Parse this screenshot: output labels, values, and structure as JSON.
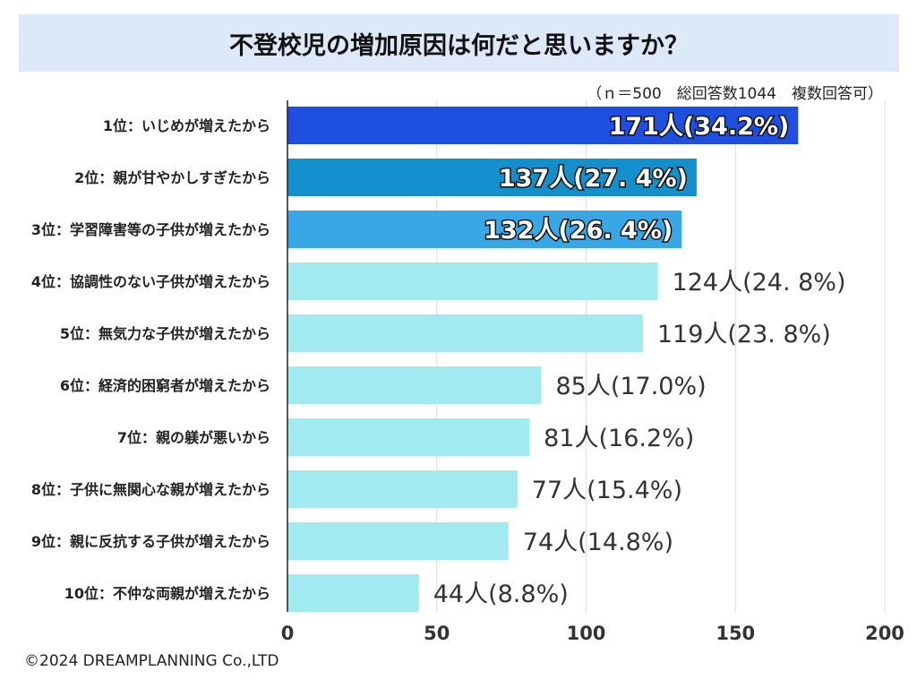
{
  "header": {
    "title": "不登校児の増加原因は何だと思いますか？",
    "note": "（ｎ＝500　総回答数1044　複数回答可）"
  },
  "chart_data": {
    "type": "bar",
    "orientation": "horizontal",
    "title": "不登校児の増加原因は何だと思いますか？",
    "xlabel": "",
    "ylabel": "",
    "xlim": [
      0,
      200
    ],
    "xticks": [
      0,
      50,
      100,
      150,
      200
    ],
    "grid": true,
    "categories": [
      "1位：いじめが増えたから",
      "2位：親が甘やかしすぎたから",
      "3位：学習障害等の子供が増えたから",
      "4位：協調性のない子供が増えたから",
      "5位：無気力な子供が増えたから",
      "6位：経済的困窮者が増えたから",
      "7位：親の躾が悪いから",
      "8位：子供に無関心な親が増えたから",
      "9位：親に反抗する子供が増えたから",
      "10位：不仲な両親が増えたから"
    ],
    "values": [
      171,
      137,
      132,
      124,
      119,
      85,
      81,
      77,
      74,
      44
    ],
    "labels": [
      "171人(34.2%)",
      "137人(27. 4%)",
      "132人(26. 4%)",
      "124人(24. 8%)",
      "119人(23. 8%)",
      "85人(17.0%)",
      "81人(16.2%)",
      "77人(15.4%)",
      "74人(14.8%)",
      "44人(8.8%)"
    ],
    "colors": [
      "#1f4fe0",
      "#138fcc",
      "#39a7e6",
      "#a0eaf0",
      "#a0eaf0",
      "#a0eaf0",
      "#a0eaf0",
      "#a0eaf0",
      "#a0eaf0",
      "#a0eaf0"
    ],
    "label_inside": [
      true,
      true,
      true,
      false,
      false,
      false,
      false,
      false,
      false,
      false
    ],
    "gridline_color": "#dcdcdc",
    "axis_color": "#222222"
  },
  "footer": {
    "copyright": "©2024 DREAMPLANNING Co.,LTD"
  }
}
